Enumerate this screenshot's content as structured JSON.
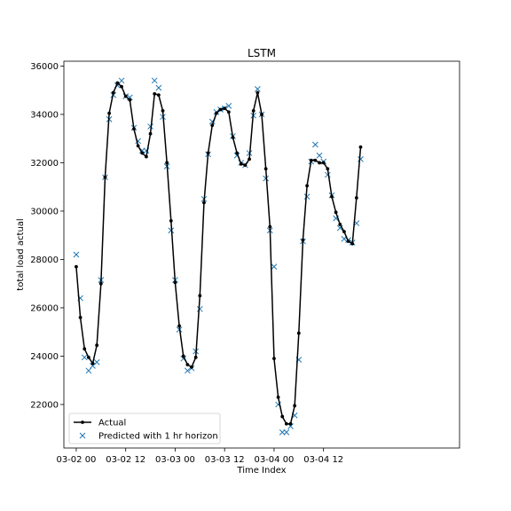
{
  "chart_data": {
    "type": "line",
    "title": "LSTM",
    "xlabel": "Time Index",
    "ylabel": "total load actual",
    "xlim": [
      -3,
      93
    ],
    "ylim": [
      20200,
      36200
    ],
    "yticks": [
      22000,
      24000,
      26000,
      28000,
      30000,
      32000,
      34000,
      36000
    ],
    "ytick_labels": [
      "22000",
      "24000",
      "26000",
      "28000",
      "30000",
      "32000",
      "34000",
      "36000"
    ],
    "xticks": [
      0,
      12,
      24,
      36,
      48,
      60
    ],
    "xtick_labels": [
      "03-02 00",
      "03-02 12",
      "03-03 00",
      "03-03 12",
      "03-04 00",
      "03-04 12"
    ],
    "legend_position": "lower-left",
    "series": [
      {
        "name": "Actual",
        "style": "line-with-dots",
        "color": "#000000",
        "values": [
          27700,
          25600,
          24300,
          23950,
          23700,
          24450,
          27000,
          31400,
          34050,
          34900,
          35300,
          35150,
          34750,
          34600,
          33400,
          32700,
          32400,
          32250,
          33200,
          34850,
          34800,
          34150,
          32000,
          29600,
          27050,
          25250,
          24000,
          23650,
          23550,
          23950,
          26500,
          30350,
          32400,
          33550,
          34050,
          34200,
          34250,
          34100,
          33050,
          32400,
          31950,
          31900,
          32150,
          34150,
          34900,
          34000,
          31750,
          29350,
          23900,
          22300,
          21500,
          21200,
          21200,
          21950,
          24950,
          28800,
          31050,
          32100,
          32100,
          32000,
          32000,
          31750,
          30600,
          29950,
          29450,
          29150,
          28750,
          28650,
          30550,
          32650
        ]
      },
      {
        "name": "Predicted with 1 hr horizon",
        "style": "x-markers",
        "color": "#1f77b4",
        "values": [
          28200,
          26400,
          23950,
          23400,
          23600,
          23750,
          27150,
          31400,
          33800,
          34800,
          35200,
          35400,
          34750,
          34700,
          33450,
          32900,
          32500,
          32500,
          33500,
          35400,
          35100,
          33900,
          31850,
          29200,
          27150,
          25100,
          23900,
          23400,
          23500,
          24200,
          25950,
          30500,
          32350,
          33700,
          34100,
          34200,
          34250,
          34350,
          33100,
          32300,
          32000,
          31900,
          32400,
          33950,
          35050,
          34000,
          31350,
          29200,
          27700,
          22000,
          20850,
          20850,
          21100,
          21550,
          23850,
          28750,
          30600,
          32050,
          32750,
          32300,
          32050,
          31500,
          30650,
          29700,
          29300,
          28850,
          28800,
          28700,
          29500,
          32150
        ]
      }
    ]
  }
}
